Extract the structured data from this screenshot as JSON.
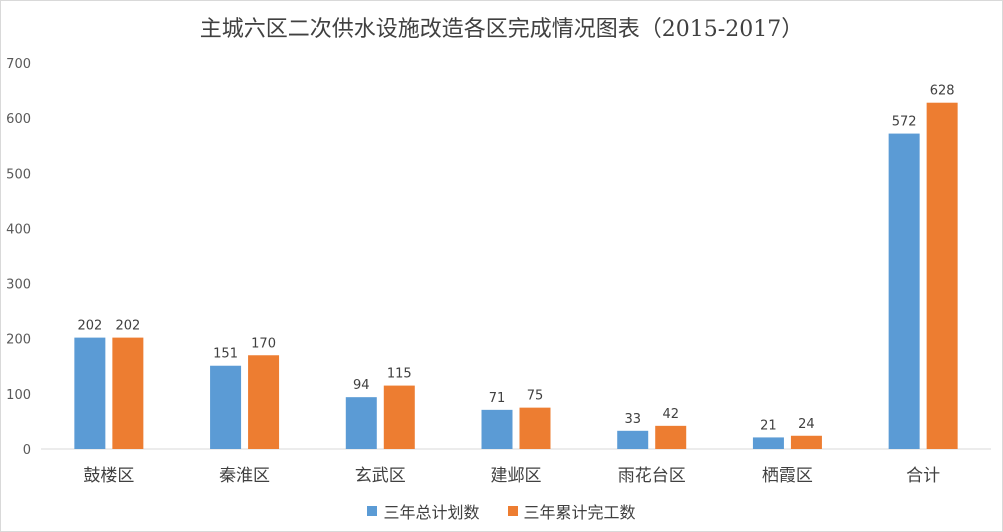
{
  "chart_data": {
    "type": "bar",
    "title": "主城六区二次供水设施改造各区完成情况图表（2015-2017）",
    "categories": [
      "鼓楼区",
      "秦淮区",
      "玄武区",
      "建邺区",
      "雨花台区",
      "栖霞区",
      "合计"
    ],
    "series": [
      {
        "name": "三年总计划数",
        "color": "#5b9bd5",
        "values": [
          202,
          151,
          94,
          71,
          33,
          21,
          572
        ]
      },
      {
        "name": "三年累计完工数",
        "color": "#ed7d31",
        "values": [
          202,
          170,
          115,
          75,
          42,
          24,
          628
        ]
      }
    ],
    "ylim": [
      0,
      700
    ],
    "yticks": [
      0,
      100,
      200,
      300,
      400,
      500,
      600,
      700
    ],
    "grid": false,
    "legend_position": "bottom"
  }
}
